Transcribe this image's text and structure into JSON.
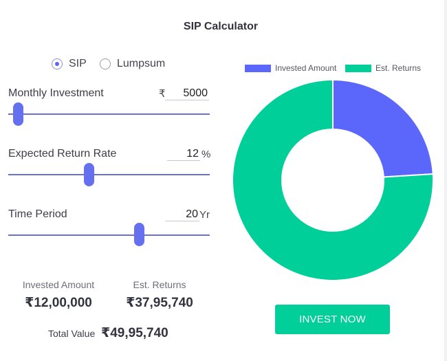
{
  "title": "SIP Calculator",
  "mode": {
    "options": [
      {
        "label": "SIP",
        "selected": true
      },
      {
        "label": "Lumpsum",
        "selected": false
      }
    ]
  },
  "inputs": {
    "monthly_investment": {
      "label": "Monthly Investment",
      "currency": "₹",
      "value": "5000",
      "slider_fraction": 0.05
    },
    "return_rate": {
      "label": "Expected Return Rate",
      "value": "12",
      "unit": "%",
      "slider_fraction": 0.4
    },
    "time_period": {
      "label": "Time Period",
      "value": "20",
      "unit": "Yr",
      "slider_fraction": 0.65
    }
  },
  "summary": {
    "invested_label": "Invested Amount",
    "invested_value": "₹12,00,000",
    "returns_label": "Est. Returns",
    "returns_value": "₹37,95,740",
    "total_label": "Total Value",
    "total_value": "₹49,95,740"
  },
  "chart_data": {
    "type": "pie",
    "donut": true,
    "legend_position": "top",
    "series": [
      {
        "name": "Invested Amount",
        "value": 1200000,
        "color": "#5b67fa"
      },
      {
        "name": "Est. Returns",
        "value": 3795740,
        "color": "#00cf9a"
      }
    ]
  },
  "cta_label": "INVEST NOW",
  "colors": {
    "accent": "#6470ee",
    "cta": "#00cf9a"
  }
}
